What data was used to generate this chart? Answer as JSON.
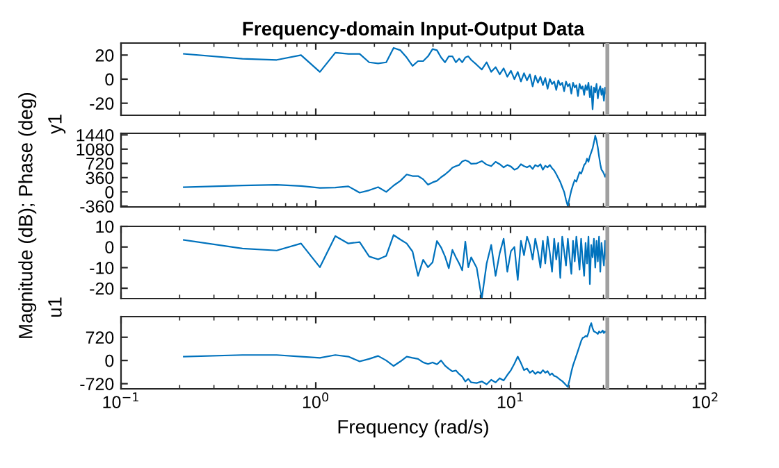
{
  "chart_data": [
    {
      "type": "line",
      "title": "Frequency-domain Input-Output Data",
      "ylabel": "y1",
      "log": "x",
      "tick_labels": "y",
      "xlim": [
        0.1,
        100
      ],
      "xticks": [
        {
          "value": 0.1,
          "label": null
        },
        {
          "value": 1,
          "label": null
        },
        {
          "value": 10,
          "label": null
        },
        {
          "value": 100,
          "label": null
        }
      ],
      "ylim": [
        -30,
        30
      ],
      "yticks": [
        -20,
        0,
        20
      ],
      "ref_lines": [
        {
          "axis": "x",
          "value": 31.42,
          "color": "#a0a0a0"
        }
      ],
      "series": [
        {
          "color": "#0072bd",
          "x": [
            0.21,
            0.42,
            0.63,
            0.84,
            1.05,
            1.26,
            1.47,
            1.68,
            1.88,
            2.09,
            2.3,
            2.51,
            2.72,
            2.93,
            3.14,
            3.35,
            3.56,
            3.77,
            3.98,
            4.19,
            4.4,
            4.61,
            4.82,
            5.03,
            5.24,
            5.45,
            5.65,
            5.86,
            6.07,
            6.28,
            6.7,
            7.12,
            7.54,
            7.96,
            8.38,
            8.8,
            9.22,
            9.63,
            10.05,
            10.47,
            10.89,
            11.31,
            11.73,
            12.15,
            12.57,
            12.99,
            13.4,
            13.82,
            14.24,
            14.66,
            15.08,
            15.5,
            15.92,
            16.34,
            16.76,
            17.17,
            17.59,
            18.01,
            18.43,
            18.85,
            19.27,
            19.69,
            20.11,
            20.53,
            20.94,
            21.36,
            21.78,
            22.2,
            22.62,
            23.04,
            23.46,
            23.88,
            24.29,
            24.71,
            25.13,
            25.55,
            25.97,
            26.39,
            26.81,
            27.23,
            27.65,
            28.07,
            28.48,
            28.9,
            29.32,
            29.74,
            30.16,
            30.58,
            31.0,
            31.42
          ],
          "values": [
            21,
            17,
            16,
            20,
            6,
            22,
            21,
            21,
            14,
            13,
            14,
            26,
            24,
            18,
            11,
            15,
            15,
            19,
            25,
            24,
            18,
            14,
            19,
            19,
            14,
            17,
            14,
            18,
            19,
            16,
            12,
            8,
            14,
            6,
            10,
            4,
            9,
            2,
            7,
            0,
            6,
            -2,
            5,
            -1,
            4,
            -6,
            3,
            -3,
            2,
            -5,
            1,
            -8,
            0,
            -4,
            -2,
            -9,
            -1,
            -5,
            -3,
            -10,
            -2,
            -6,
            -4,
            -12,
            -3,
            -7,
            -5,
            -14,
            -4,
            -8,
            -6,
            -13,
            -5,
            -9,
            -3,
            -15,
            -6,
            -25,
            -7,
            -11,
            -4,
            -16,
            -9,
            -6,
            -13,
            -8,
            -18,
            -7,
            -12,
            -16
          ]
        }
      ]
    },
    {
      "type": "line",
      "ylabel": "Magnitude (dB); Phase (deg)",
      "log": "x",
      "tick_labels": "y",
      "xlim": [
        0.1,
        100
      ],
      "xticks": [
        {
          "value": 0.1,
          "label": null
        },
        {
          "value": 1,
          "label": null
        },
        {
          "value": 10,
          "label": null
        },
        {
          "value": 100,
          "label": null
        }
      ],
      "ylim": [
        -380,
        1480
      ],
      "yticks": [
        -360,
        0,
        360,
        720,
        1080,
        1440
      ],
      "ref_lines": [
        {
          "axis": "x",
          "value": 31.42,
          "color": "#a0a0a0"
        }
      ],
      "series": [
        {
          "color": "#0072bd",
          "x": [
            0.21,
            0.42,
            0.63,
            0.84,
            1.05,
            1.26,
            1.47,
            1.68,
            1.88,
            2.09,
            2.3,
            2.51,
            2.72,
            2.93,
            3.14,
            3.35,
            3.56,
            3.77,
            3.98,
            4.19,
            4.4,
            4.61,
            4.82,
            5.03,
            5.24,
            5.45,
            5.65,
            5.86,
            6.07,
            6.28,
            6.7,
            7.12,
            7.54,
            7.96,
            8.38,
            8.8,
            9.22,
            9.63,
            10.05,
            10.47,
            10.89,
            11.31,
            11.73,
            12.15,
            12.57,
            12.99,
            13.4,
            13.82,
            14.24,
            14.66,
            15.08,
            15.5,
            15.92,
            16.34,
            16.76,
            17.17,
            17.59,
            18.01,
            18.43,
            18.85,
            19.27,
            19.69,
            20.11,
            20.53,
            20.94,
            21.36,
            21.78,
            22.2,
            22.62,
            23.04,
            23.46,
            23.88,
            24.29,
            24.71,
            25.13,
            25.55,
            25.97,
            26.39,
            26.81,
            27.23,
            27.65,
            28.07,
            28.48,
            28.9,
            29.32,
            29.74,
            30.16,
            30.58,
            31.0,
            31.42
          ],
          "values": [
            120,
            160,
            180,
            150,
            100,
            110,
            140,
            -20,
            40,
            120,
            0,
            160,
            280,
            440,
            400,
            400,
            320,
            180,
            240,
            280,
            370,
            440,
            520,
            610,
            650,
            680,
            770,
            800,
            770,
            710,
            720,
            780,
            690,
            650,
            760,
            700,
            620,
            680,
            640,
            560,
            600,
            700,
            650,
            620,
            660,
            580,
            680,
            640,
            700,
            560,
            660,
            620,
            680,
            600,
            540,
            450,
            350,
            250,
            120,
            0,
            -200,
            -360,
            -150,
            40,
            180,
            300,
            260,
            380,
            500,
            460,
            560,
            680,
            720,
            840,
            760,
            900,
            1000,
            1100,
            1250,
            1420,
            1300,
            1120,
            900,
            700,
            560,
            520,
            460,
            380,
            460,
            400
          ]
        }
      ]
    },
    {
      "type": "line",
      "ylabel": "u1",
      "log": "x",
      "tick_labels": "y",
      "xlim": [
        0.1,
        100
      ],
      "xticks": [
        {
          "value": 0.1,
          "label": null
        },
        {
          "value": 1,
          "label": null
        },
        {
          "value": 10,
          "label": null
        },
        {
          "value": 100,
          "label": null
        }
      ],
      "ylim": [
        -25,
        10
      ],
      "yticks": [
        -20,
        -10,
        0,
        10
      ],
      "ref_lines": [
        {
          "axis": "x",
          "value": 31.42,
          "color": "#a0a0a0"
        }
      ],
      "series": [
        {
          "color": "#0072bd",
          "x": [
            0.21,
            0.42,
            0.63,
            0.84,
            1.05,
            1.26,
            1.47,
            1.68,
            1.88,
            2.09,
            2.3,
            2.51,
            2.72,
            2.93,
            3.14,
            3.35,
            3.56,
            3.77,
            3.98,
            4.19,
            4.4,
            4.61,
            4.82,
            5.03,
            5.24,
            5.45,
            5.65,
            5.86,
            6.07,
            6.28,
            6.7,
            7.12,
            7.54,
            7.96,
            8.38,
            8.8,
            9.22,
            9.63,
            10.05,
            10.47,
            10.89,
            11.31,
            11.73,
            12.15,
            12.57,
            12.99,
            13.4,
            13.82,
            14.24,
            14.66,
            15.08,
            15.5,
            15.92,
            16.34,
            16.76,
            17.17,
            17.59,
            18.01,
            18.43,
            18.85,
            19.27,
            19.69,
            20.11,
            20.53,
            20.94,
            21.36,
            21.78,
            22.2,
            22.62,
            23.04,
            23.46,
            23.88,
            24.29,
            24.71,
            25.13,
            25.55,
            25.97,
            26.39,
            26.81,
            27.23,
            27.65,
            28.07,
            28.48,
            28.9,
            29.32,
            29.74,
            30.16,
            30.58,
            31.0,
            31.42
          ],
          "values": [
            3.4,
            -0.7,
            -1.7,
            1.7,
            -9.8,
            5.3,
            1.7,
            2.4,
            -4.6,
            -6,
            -4.3,
            5.8,
            3.6,
            1.7,
            -2.2,
            -14,
            -6.2,
            -9.8,
            -7.4,
            2.9,
            -0.2,
            -4.6,
            -10.3,
            -1.4,
            -5,
            -8,
            -11.3,
            2.6,
            -9.8,
            -5,
            -10,
            -25,
            -8,
            1,
            -14,
            -3,
            4,
            -12,
            -2,
            0,
            -16,
            3,
            -4,
            5,
            1,
            -6,
            4,
            -2,
            -10,
            3,
            -8,
            5,
            -3,
            -12,
            4,
            -6,
            2,
            -15,
            5,
            -2,
            -9,
            4,
            -5,
            -13,
            3,
            -7,
            5,
            -3,
            -11,
            4,
            -6,
            -14,
            2,
            -8,
            5,
            -18,
            1,
            -5,
            4,
            -10,
            3,
            -7,
            5,
            -12,
            2,
            -4,
            -9,
            3,
            -6,
            1
          ]
        }
      ]
    },
    {
      "type": "line",
      "xlabel": "Frequency (rad/s)",
      "log": "x",
      "xlim": [
        0.1,
        100
      ],
      "xticks": [
        {
          "value": 0.1,
          "label": "10$^{−1}$"
        },
        {
          "value": 1,
          "label": "10$^{0}$"
        },
        {
          "value": 10,
          "label": "10$^{1}$"
        },
        {
          "value": 100,
          "label": "10$^{2}$"
        }
      ],
      "ylim": [
        -880,
        1360
      ],
      "yticks": [
        -720,
        0,
        720
      ],
      "ref_lines": [
        {
          "axis": "x",
          "value": 31.42,
          "color": "#a0a0a0"
        }
      ],
      "series": [
        {
          "color": "#0072bd",
          "x": [
            0.21,
            0.42,
            0.63,
            0.84,
            1.05,
            1.26,
            1.47,
            1.68,
            1.88,
            2.09,
            2.3,
            2.51,
            2.72,
            2.93,
            3.14,
            3.35,
            3.56,
            3.77,
            3.98,
            4.19,
            4.4,
            4.61,
            4.82,
            5.03,
            5.24,
            5.45,
            5.65,
            5.86,
            6.07,
            6.28,
            6.7,
            7.12,
            7.54,
            7.96,
            8.38,
            8.8,
            9.22,
            9.63,
            10.05,
            10.47,
            10.89,
            11.31,
            11.73,
            12.15,
            12.57,
            12.99,
            13.4,
            13.82,
            14.24,
            14.66,
            15.08,
            15.5,
            15.92,
            16.34,
            16.76,
            17.17,
            17.59,
            18.01,
            18.43,
            18.85,
            19.27,
            19.69,
            20.11,
            20.53,
            20.94,
            21.36,
            21.78,
            22.2,
            22.62,
            23.04,
            23.46,
            23.88,
            24.29,
            24.71,
            25.13,
            25.55,
            25.97,
            26.39,
            26.81,
            27.23,
            27.65,
            28.07,
            28.48,
            28.9,
            29.32,
            29.74,
            30.16,
            30.58,
            31.0,
            31.42
          ],
          "values": [
            120,
            170,
            170,
            120,
            80,
            170,
            120,
            -30,
            50,
            140,
            0,
            -170,
            -30,
            120,
            80,
            50,
            -60,
            -110,
            -60,
            -120,
            0,
            -160,
            -260,
            -340,
            -310,
            -420,
            -500,
            -650,
            -570,
            -680,
            -700,
            -650,
            -740,
            -600,
            -680,
            -550,
            -620,
            -450,
            -300,
            -100,
            120,
            -80,
            -300,
            -250,
            -380,
            -320,
            -420,
            -350,
            -400,
            -300,
            -380,
            -330,
            -450,
            -400,
            -480,
            -500,
            -550,
            -600,
            -640,
            -700,
            -760,
            -820,
            -600,
            -350,
            -150,
            0,
            150,
            300,
            450,
            600,
            700,
            720,
            760,
            740,
            850,
            1050,
            1160,
            1000,
            900,
            880,
            860,
            820,
            900,
            860,
            880,
            930,
            850,
            900,
            870,
            780
          ]
        }
      ]
    }
  ]
}
